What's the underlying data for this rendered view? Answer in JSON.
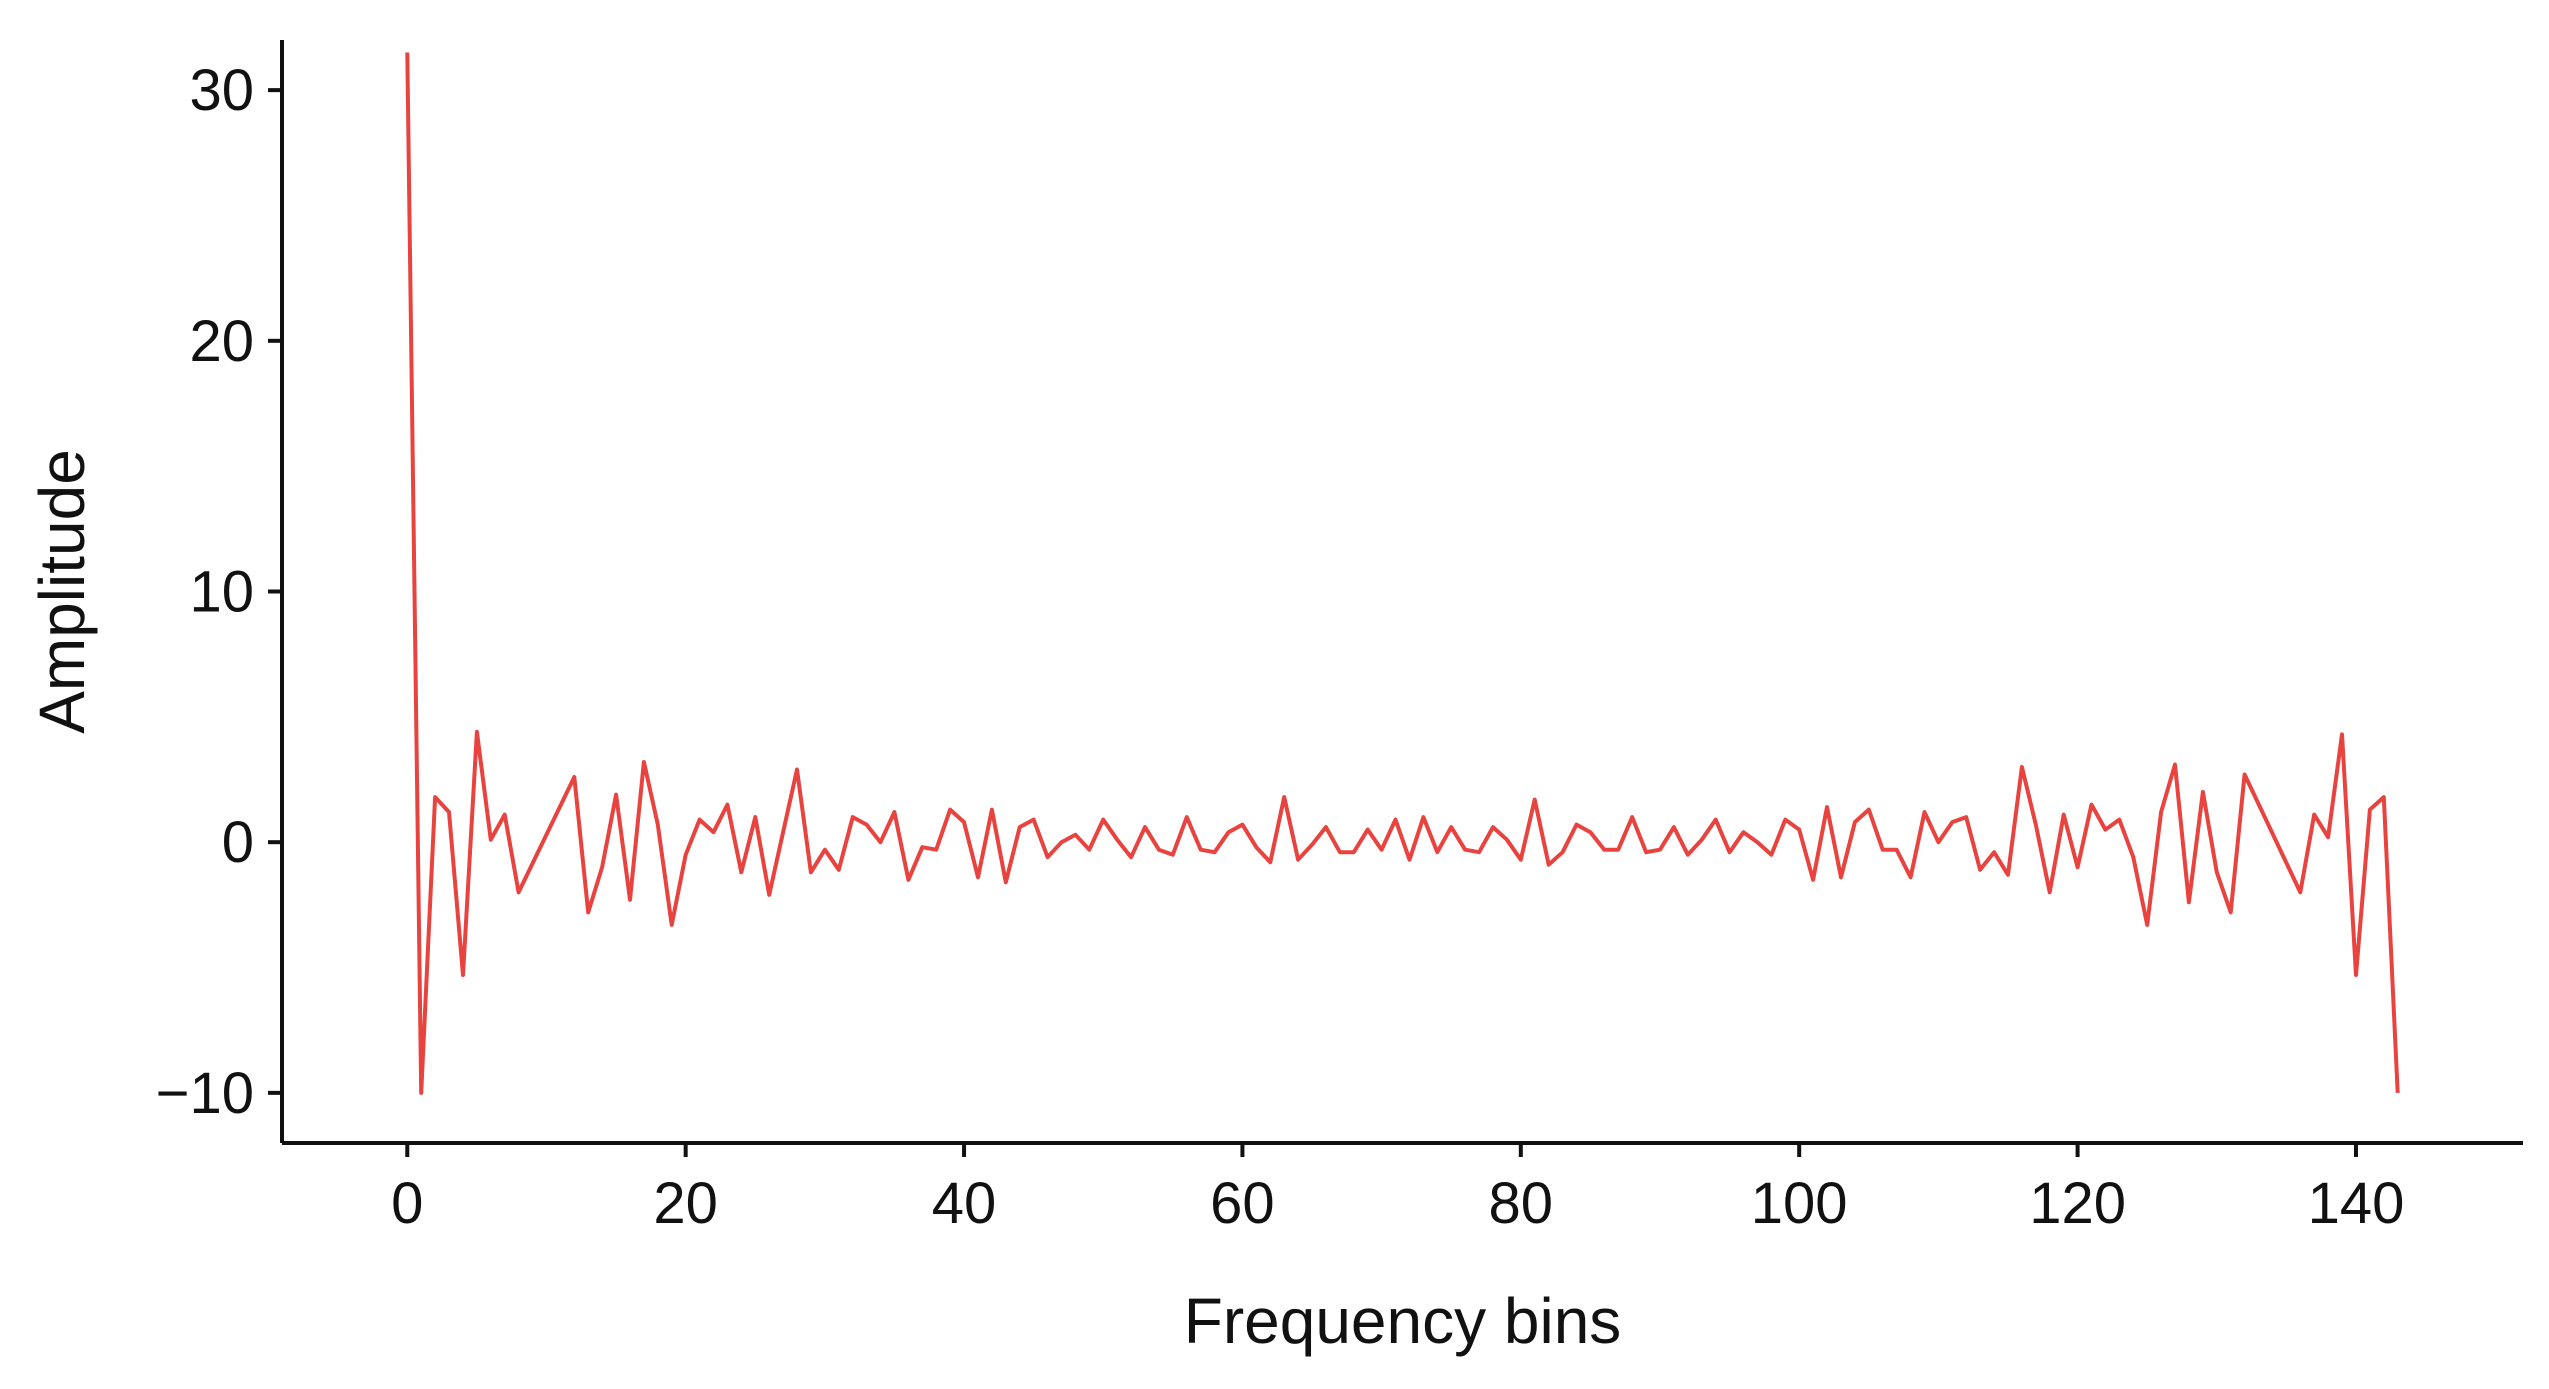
{
  "chart_data": {
    "type": "line",
    "title": "",
    "xlabel": "Frequency bins",
    "ylabel": "Amplitude",
    "xlim": [
      -9,
      152
    ],
    "ylim": [
      -12,
      32
    ],
    "xticks": [
      0,
      20,
      40,
      60,
      80,
      100,
      120,
      140
    ],
    "yticks": [
      -10,
      0,
      10,
      20,
      30
    ],
    "xtick_labels": [
      "0",
      "20",
      "40",
      "60",
      "80",
      "100",
      "120",
      "140"
    ],
    "ytick_labels": [
      "−10",
      "0",
      "10",
      "20",
      "30"
    ],
    "grid": false,
    "legend": "none",
    "line_color": "#e8433f",
    "series": [
      {
        "color": "#e8433f",
        "x": [
          0,
          1,
          2,
          3,
          4,
          5,
          6,
          7,
          8,
          12,
          13,
          14,
          15,
          16,
          17,
          18,
          19,
          20,
          21,
          22,
          23,
          24,
          25,
          26,
          27,
          28,
          29,
          30,
          31,
          32,
          33,
          34,
          35,
          36,
          37,
          38,
          39,
          40,
          41,
          42,
          43,
          44,
          45,
          46,
          47,
          48,
          49,
          50,
          51,
          52,
          53,
          54,
          55,
          56,
          57,
          58,
          59,
          60,
          61,
          62,
          63,
          64,
          65,
          66,
          67,
          68,
          69,
          70,
          71,
          72,
          73,
          74,
          75,
          76,
          77,
          78,
          79,
          80,
          81,
          82,
          83,
          84,
          85,
          86,
          87,
          88,
          89,
          90,
          91,
          92,
          93,
          94,
          95,
          96,
          97,
          98,
          99,
          100,
          101,
          102,
          103,
          104,
          105,
          106,
          107,
          108,
          109,
          110,
          111,
          112,
          113,
          114,
          115,
          116,
          117,
          118,
          119,
          120,
          121,
          122,
          123,
          124,
          125,
          126,
          127,
          128,
          129,
          130,
          131,
          132,
          136,
          137,
          138,
          139,
          140,
          141,
          142,
          143
        ],
        "y": [
          31.5,
          -10,
          1.8,
          1.2,
          -5.3,
          4.4,
          0.1,
          1.1,
          -2.0,
          2.6,
          -2.8,
          -1.0,
          1.9,
          -2.3,
          3.2,
          0.7,
          -3.3,
          -0.5,
          0.9,
          0.4,
          1.5,
          -1.2,
          1.0,
          -2.1,
          0.4,
          2.9,
          -1.2,
          -0.3,
          -1.1,
          1.0,
          0.7,
          0.0,
          1.2,
          -1.5,
          -0.2,
          -0.3,
          1.3,
          0.8,
          -1.4,
          1.3,
          -1.6,
          0.6,
          0.9,
          -0.6,
          0.0,
          0.3,
          -0.3,
          0.9,
          0.1,
          -0.6,
          0.6,
          -0.3,
          -0.5,
          1.0,
          -0.3,
          -0.4,
          0.4,
          0.7,
          -0.2,
          -0.8,
          1.8,
          -0.7,
          -0.1,
          0.6,
          -0.4,
          -0.4,
          0.5,
          -0.3,
          0.9,
          -0.7,
          1.0,
          -0.4,
          0.6,
          -0.3,
          -0.4,
          0.6,
          0.1,
          -0.7,
          1.7,
          -0.9,
          -0.4,
          0.7,
          0.4,
          -0.3,
          -0.3,
          1.0,
          -0.4,
          -0.3,
          0.6,
          -0.5,
          0.1,
          0.9,
          -0.4,
          0.4,
          0.0,
          -0.5,
          0.9,
          0.5,
          -1.5,
          1.4,
          -1.4,
          0.8,
          1.3,
          -0.3,
          -0.3,
          -1.4,
          1.2,
          0.0,
          0.8,
          1.0,
          -1.1,
          -0.4,
          -1.3,
          3.0,
          0.7,
          -2.0,
          1.1,
          -1.0,
          1.5,
          0.5,
          0.9,
          -0.6,
          -3.3,
          1.2,
          3.1,
          -2.4,
          2.0,
          -1.2,
          -2.8,
          2.7,
          -2.0,
          1.1,
          0.2,
          4.3,
          -5.3,
          1.3,
          1.8,
          -10
        ]
      }
    ]
  }
}
